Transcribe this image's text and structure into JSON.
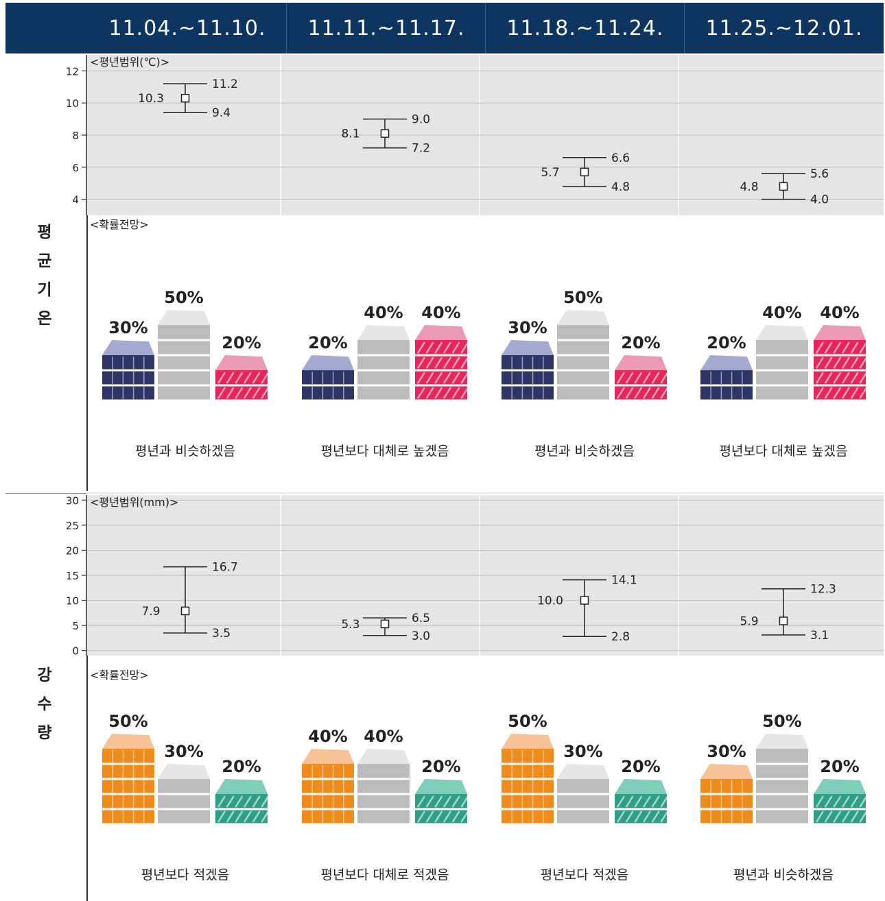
{
  "periods": [
    "11.04.~11.10.",
    "11.11.~11.17.",
    "11.18.~11.24.",
    "11.25.~12.01."
  ],
  "temperature": {
    "side_title": [
      "평",
      "균",
      "기",
      "온"
    ],
    "range_label": "<평년범위(℃)>",
    "prob_label": "<확률전망>",
    "outlooks": [
      "평년과 비슷하겠음",
      "평년보다 대체로 높겠음",
      "평년과 비슷하겠음",
      "평년보다 대체로 높겠음"
    ],
    "colors": {
      "low": "#2e3567",
      "low_top": "#a5abd0",
      "normal": "#bcbcbc",
      "normal_top": "#e6e6e6",
      "high": "#e6255a",
      "high_top": "#ec9ab4"
    }
  },
  "precipitation": {
    "side_title": [
      "강",
      "수",
      "량"
    ],
    "range_label": "<평년범위(mm)>",
    "prob_label": "<확률전망>",
    "outlooks": [
      "평년보다 적겠음",
      "평년보다 대체로 적겠음",
      "평년보다 적겠음",
      "평년과 비슷하겠음"
    ],
    "colors": {
      "low": "#f08c1c",
      "low_top": "#f6c296",
      "normal": "#bcbcbc",
      "normal_top": "#e6e6e6",
      "high": "#2f9e86",
      "high_top": "#7fcdbb"
    }
  },
  "chart_data": [
    {
      "type": "errorbar",
      "ylim": [
        3,
        13
      ],
      "yticks": [
        4,
        6,
        8,
        10,
        12
      ],
      "x": [
        "11.04.~11.10.",
        "11.11.~11.17.",
        "11.18.~11.24.",
        "11.25.~12.01."
      ],
      "mid": [
        10.3,
        8.1,
        5.7,
        4.8
      ],
      "high": [
        11.2,
        9.0,
        6.6,
        5.6
      ],
      "low": [
        9.4,
        7.2,
        4.8,
        4.0
      ],
      "mid_labels": [
        "10.3",
        "8.1",
        "5.7",
        "4.8"
      ],
      "high_labels": [
        "11.2",
        "9.0",
        "6.6",
        "5.6"
      ],
      "low_labels": [
        "9.4",
        "7.2",
        "4.8",
        "4.0"
      ]
    },
    {
      "type": "bar",
      "categories": [
        "11.04.~11.10.",
        "11.11.~11.17.",
        "11.18.~11.24.",
        "11.25.~12.01."
      ],
      "series": [
        {
          "values": [
            30,
            20,
            30,
            20
          ]
        },
        {
          "values": [
            50,
            40,
            50,
            40
          ]
        },
        {
          "values": [
            20,
            40,
            20,
            40
          ]
        }
      ],
      "labels": [
        [
          "30%",
          "50%",
          "20%"
        ],
        [
          "20%",
          "40%",
          "40%"
        ],
        [
          "30%",
          "50%",
          "20%"
        ],
        [
          "20%",
          "40%",
          "40%"
        ]
      ]
    },
    {
      "type": "errorbar",
      "ylim": [
        -1,
        31
      ],
      "yticks": [
        0,
        5,
        10,
        15,
        20,
        25,
        30
      ],
      "x": [
        "11.04.~11.10.",
        "11.11.~11.17.",
        "11.18.~11.24.",
        "11.25.~12.01."
      ],
      "mid": [
        7.9,
        5.3,
        10.0,
        5.9
      ],
      "high": [
        16.7,
        6.5,
        14.1,
        12.3
      ],
      "low": [
        3.5,
        3.0,
        2.8,
        3.1
      ],
      "mid_labels": [
        "7.9",
        "5.3",
        "10.0",
        "5.9"
      ],
      "high_labels": [
        "16.7",
        "6.5",
        "14.1",
        "12.3"
      ],
      "low_labels": [
        "3.5",
        "3.0",
        "2.8",
        "3.1"
      ]
    },
    {
      "type": "bar",
      "categories": [
        "11.04.~11.10.",
        "11.11.~11.17.",
        "11.18.~11.24.",
        "11.25.~12.01."
      ],
      "series": [
        {
          "values": [
            50,
            40,
            50,
            30
          ]
        },
        {
          "values": [
            30,
            40,
            30,
            50
          ]
        },
        {
          "values": [
            20,
            20,
            20,
            20
          ]
        }
      ],
      "labels": [
        [
          "50%",
          "30%",
          "20%"
        ],
        [
          "40%",
          "40%",
          "20%"
        ],
        [
          "50%",
          "30%",
          "20%"
        ],
        [
          "30%",
          "50%",
          "20%"
        ]
      ]
    }
  ]
}
